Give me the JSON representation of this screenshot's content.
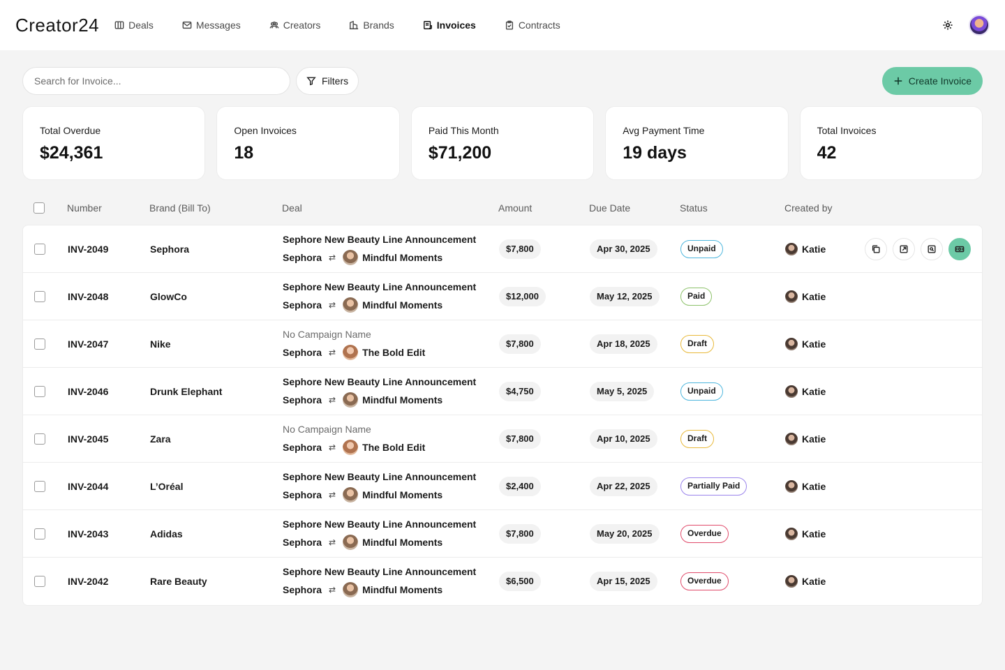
{
  "app": {
    "logo": "Creator24"
  },
  "nav": [
    {
      "label": "Deals",
      "icon": "columns-icon",
      "active": false
    },
    {
      "label": "Messages",
      "icon": "mail-icon",
      "active": false
    },
    {
      "label": "Creators",
      "icon": "users-icon",
      "active": false
    },
    {
      "label": "Brands",
      "icon": "building-icon",
      "active": false
    },
    {
      "label": "Invoices",
      "icon": "invoice-icon",
      "active": true
    },
    {
      "label": "Contracts",
      "icon": "clipboard-icon",
      "active": false
    }
  ],
  "toolbar": {
    "search_placeholder": "Search for Invoice...",
    "filters_label": "Filters",
    "create_label": "Create Invoice",
    "accent": "#6ccaa6"
  },
  "stats": [
    {
      "label": "Total Overdue",
      "value": "$24,361"
    },
    {
      "label": "Open Invoices",
      "value": "18"
    },
    {
      "label": "Paid This Month",
      "value": "$71,200"
    },
    {
      "label": "Avg Payment Time",
      "value": "19 days"
    },
    {
      "label": "Total Invoices",
      "value": "42"
    }
  ],
  "table": {
    "columns": {
      "number": "Number",
      "brand": "Brand (Bill To)",
      "deal": "Deal",
      "amount": "Amount",
      "due": "Due Date",
      "status": "Status",
      "created": "Created by"
    },
    "rows": [
      {
        "number": "INV-2049",
        "brand": "Sephora",
        "deal_title": "Sephore New Beauty Line Announcement",
        "deal_muted": false,
        "deal_brand": "Sephora",
        "creator": "Mindful Moments",
        "amount": "$7,800",
        "due": "Apr 30, 2025",
        "status": "Unpaid",
        "status_class": "st-unpaid",
        "created_by": "Katie"
      },
      {
        "number": "INV-2048",
        "brand": "GlowCo",
        "deal_title": "Sephore New Beauty Line Announcement",
        "deal_muted": false,
        "deal_brand": "Sephora",
        "creator": "Mindful Moments",
        "amount": "$12,000",
        "due": "May 12, 2025",
        "status": "Paid",
        "status_class": "st-paid",
        "created_by": "Katie"
      },
      {
        "number": "INV-2047",
        "brand": "Nike",
        "deal_title": "No Campaign Name",
        "deal_muted": true,
        "deal_brand": "Sephora",
        "creator": "The Bold Edit",
        "amount": "$7,800",
        "due": "Apr 18, 2025",
        "status": "Draft",
        "status_class": "st-draft",
        "created_by": "Katie"
      },
      {
        "number": "INV-2046",
        "brand": "Drunk Elephant",
        "deal_title": "Sephore New Beauty Line Announcement",
        "deal_muted": false,
        "deal_brand": "Sephora",
        "creator": "Mindful Moments",
        "amount": "$4,750",
        "due": "May 5, 2025",
        "status": "Unpaid",
        "status_class": "st-unpaid",
        "created_by": "Katie"
      },
      {
        "number": "INV-2045",
        "brand": "Zara",
        "deal_title": "No Campaign Name",
        "deal_muted": true,
        "deal_brand": "Sephora",
        "creator": "The Bold Edit",
        "amount": "$7,800",
        "due": "Apr 10, 2025",
        "status": "Draft",
        "status_class": "st-draft",
        "created_by": "Katie"
      },
      {
        "number": "INV-2044",
        "brand": "L’Oréal",
        "deal_title": "Sephore New Beauty Line Announcement",
        "deal_muted": false,
        "deal_brand": "Sephora",
        "creator": "Mindful Moments",
        "amount": "$2,400",
        "due": "Apr 22, 2025",
        "status": "Partially Paid",
        "status_class": "st-partial",
        "created_by": "Katie"
      },
      {
        "number": "INV-2043",
        "brand": "Adidas",
        "deal_title": "Sephore New Beauty Line Announcement",
        "deal_muted": false,
        "deal_brand": "Sephora",
        "creator": "Mindful Moments",
        "amount": "$7,800",
        "due": "May 20, 2025",
        "status": "Overdue",
        "status_class": "st-overdue",
        "created_by": "Katie"
      },
      {
        "number": "INV-2042",
        "brand": "Rare Beauty",
        "deal_title": "Sephore New Beauty Line Announcement",
        "deal_muted": false,
        "deal_brand": "Sephora",
        "creator": "Mindful Moments",
        "amount": "$6,500",
        "due": "Apr 15, 2025",
        "status": "Overdue",
        "status_class": "st-overdue",
        "created_by": "Katie"
      }
    ],
    "row_actions": [
      "duplicate-icon",
      "open-external-icon",
      "document-search-icon",
      "payment-icon"
    ]
  },
  "status_colors": {
    "unpaid": "#4db6dd",
    "paid": "#8cc16a",
    "draft": "#e8b93a",
    "partial": "#9b84ec",
    "overdue": "#e04a6a"
  }
}
